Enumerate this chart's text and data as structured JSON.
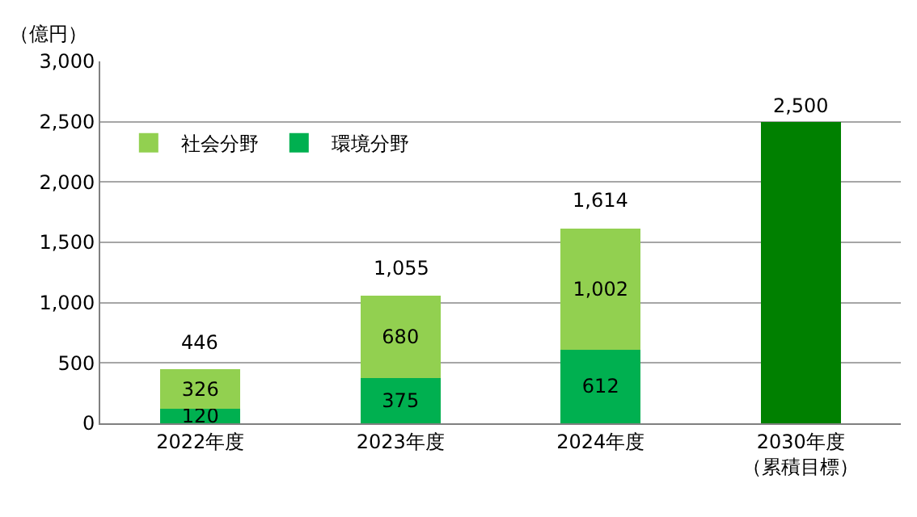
{
  "chart_data": {
    "type": "bar",
    "stacked": true,
    "ylabel": "（億円）",
    "categories": [
      "2022年度",
      "2023年度",
      "2024年度",
      "2030年度（累積目標）"
    ],
    "series": [
      {
        "name": "環境分野",
        "color": "#00b050",
        "values": [
          120,
          375,
          612,
          null
        ],
        "value_labels": [
          "120",
          "375",
          "612",
          null
        ]
      },
      {
        "name": "社会分野",
        "color": "#92d050",
        "values": [
          326,
          680,
          1002,
          null
        ],
        "value_labels": [
          "326",
          "680",
          "1,002",
          null
        ]
      },
      {
        "color": "#008000",
        "values": [
          null,
          null,
          null,
          2500
        ],
        "value_labels": [
          null,
          null,
          null,
          "2,500"
        ]
      }
    ],
    "totals": [
      "446",
      "1,055",
      "1,614",
      null
    ],
    "ylim": [
      0,
      3000
    ],
    "yticks": [
      {
        "value": 0,
        "label": "0"
      },
      {
        "value": 500,
        "label": "500"
      },
      {
        "value": 1000,
        "label": "1,000"
      },
      {
        "value": 1500,
        "label": "1,500"
      },
      {
        "value": 2000,
        "label": "2,000"
      },
      {
        "value": 2500,
        "label": "2,500"
      },
      {
        "value": 3000,
        "label": "3,000"
      }
    ],
    "grid": "y",
    "legend": "top left"
  }
}
